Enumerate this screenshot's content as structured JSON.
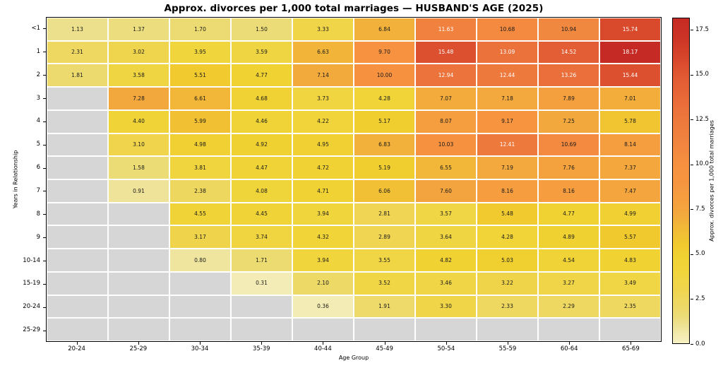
{
  "chart_data": {
    "type": "heatmap",
    "title": "Approx. divorces per 1,000 total marriages — HUSBAND'S AGE (2025)",
    "xlabel": "Age Group",
    "ylabel": "Years in Relationship",
    "x_categories": [
      "20-24",
      "25-29",
      "30-34",
      "35-39",
      "40-44",
      "45-49",
      "50-54",
      "55-59",
      "60-64",
      "65-69"
    ],
    "y_categories": [
      "<1",
      "1",
      "2",
      "3",
      "4",
      "5",
      "6",
      "7",
      "8",
      "9",
      "10-14",
      "15-19",
      "20-24",
      "25-29"
    ],
    "values": [
      [
        1.13,
        1.37,
        1.7,
        1.5,
        3.33,
        6.84,
        11.63,
        10.68,
        10.94,
        15.74
      ],
      [
        2.31,
        3.02,
        3.95,
        3.59,
        6.63,
        9.7,
        15.48,
        13.09,
        14.52,
        18.17
      ],
      [
        1.81,
        3.58,
        5.51,
        4.77,
        7.14,
        10.0,
        12.94,
        12.44,
        13.26,
        15.44
      ],
      [
        null,
        7.28,
        6.61,
        4.68,
        3.73,
        4.28,
        7.07,
        7.18,
        7.89,
        7.01
      ],
      [
        null,
        4.4,
        5.99,
        4.46,
        4.22,
        5.17,
        8.07,
        9.17,
        7.25,
        5.78
      ],
      [
        null,
        3.1,
        4.98,
        4.92,
        4.95,
        6.83,
        10.03,
        12.41,
        10.69,
        8.14
      ],
      [
        null,
        1.58,
        3.81,
        4.47,
        4.72,
        5.19,
        6.55,
        7.19,
        7.76,
        7.37
      ],
      [
        null,
        0.91,
        2.38,
        4.08,
        4.71,
        6.06,
        7.6,
        8.16,
        8.16,
        7.47
      ],
      [
        null,
        null,
        4.55,
        4.45,
        3.94,
        2.81,
        3.57,
        5.48,
        4.77,
        4.99
      ],
      [
        null,
        null,
        3.17,
        3.74,
        4.32,
        2.89,
        3.64,
        4.28,
        4.89,
        5.57
      ],
      [
        null,
        null,
        0.8,
        1.71,
        3.94,
        3.55,
        4.82,
        5.03,
        4.54,
        4.83
      ],
      [
        null,
        null,
        null,
        0.31,
        2.1,
        3.52,
        3.46,
        3.22,
        3.27,
        3.49
      ],
      [
        null,
        null,
        null,
        null,
        0.36,
        1.91,
        3.3,
        2.33,
        2.29,
        2.35
      ],
      [
        null,
        null,
        null,
        null,
        null,
        null,
        null,
        null,
        null,
        null
      ]
    ],
    "value_format_decimals": 2,
    "colorbar": {
      "label": "Approx. divorces per 1,000 total marriages",
      "ticks": [
        "0.0",
        "2.5",
        "5.0",
        "7.5",
        "10.0",
        "12.5",
        "15.0",
        "17.5"
      ],
      "vmin": 0,
      "vmax": 18.17
    },
    "colors": {
      "missing_cell": "#d6d6d6",
      "grid_line": "#ffffff",
      "annotation_dark": "#1a1a1a",
      "annotation_light": "#ffffff",
      "colormap_stops": [
        [
          0.0,
          "#f6f0c4"
        ],
        [
          0.5,
          "#f2eaae"
        ],
        [
          1.0,
          "#ede293"
        ],
        [
          1.5,
          "#ecdc78"
        ],
        [
          2.0,
          "#edd968"
        ],
        [
          2.5,
          "#eed75c"
        ],
        [
          3.0,
          "#efd44e"
        ],
        [
          3.5,
          "#f0d545"
        ],
        [
          4.0,
          "#f0d53b"
        ],
        [
          4.8,
          "#f0d233"
        ],
        [
          5.5,
          "#f0ca2e"
        ],
        [
          6.5,
          "#f2b838"
        ],
        [
          7.25,
          "#f3a83d"
        ],
        [
          8.0,
          "#f59f3f"
        ],
        [
          9.0,
          "#f69540"
        ],
        [
          10.0,
          "#f69140"
        ],
        [
          11.0,
          "#f1873f"
        ],
        [
          12.0,
          "#ef7d3e"
        ],
        [
          13.0,
          "#ec733c"
        ],
        [
          14.0,
          "#e76537"
        ],
        [
          15.0,
          "#e05832"
        ],
        [
          16.0,
          "#d7452b"
        ],
        [
          17.0,
          "#cd3526"
        ],
        [
          18.17,
          "#c62a24"
        ]
      ],
      "light_text_threshold": 11.2
    },
    "legend_position": "right-colorbar",
    "grid": false
  }
}
